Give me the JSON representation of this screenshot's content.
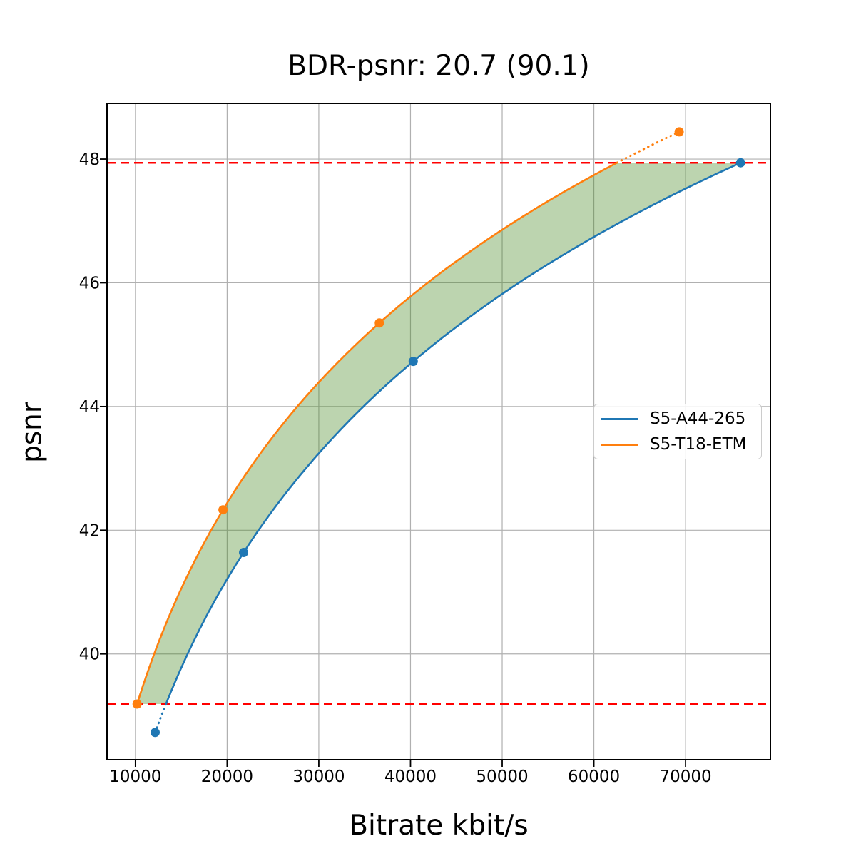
{
  "chart_data": {
    "type": "line",
    "title": "BDR-psnr: 20.7 (90.1)",
    "xlabel": "Bitrate kbit/s",
    "ylabel": "psnr",
    "xlim": [
      6900,
      79250
    ],
    "ylim": [
      38.29,
      48.9
    ],
    "x_ticks": [
      10000,
      20000,
      30000,
      40000,
      50000,
      60000,
      70000
    ],
    "x_tick_labels": [
      "10000",
      "20000",
      "30000",
      "40000",
      "50000",
      "60000",
      "70000"
    ],
    "y_ticks": [
      40,
      42,
      44,
      46,
      48
    ],
    "y_tick_labels": [
      "40",
      "42",
      "44",
      "46",
      "48"
    ],
    "grid": true,
    "grid_color": "#b0b0b0",
    "axis_color": "#000000",
    "legend_position": "center right",
    "series": [
      {
        "name": "S5-A44-265",
        "color": "#1f77b4",
        "points": [
          [
            12150,
            38.73
          ],
          [
            21800,
            41.64
          ],
          [
            40300,
            44.73
          ],
          [
            76000,
            47.94
          ]
        ]
      },
      {
        "name": "S5-T18-ETM",
        "color": "#ff7f0e",
        "points": [
          [
            10180,
            39.19
          ],
          [
            19550,
            42.33
          ],
          [
            36600,
            45.35
          ],
          [
            69300,
            48.44
          ]
        ]
      }
    ],
    "overlap_range": {
      "low": 39.19,
      "high": 47.94,
      "line_color": "#ff0000",
      "line_style": "dashed"
    },
    "fill_between": {
      "color": "#448822",
      "opacity": 0.36
    },
    "out_of_range_style": "dotted"
  }
}
